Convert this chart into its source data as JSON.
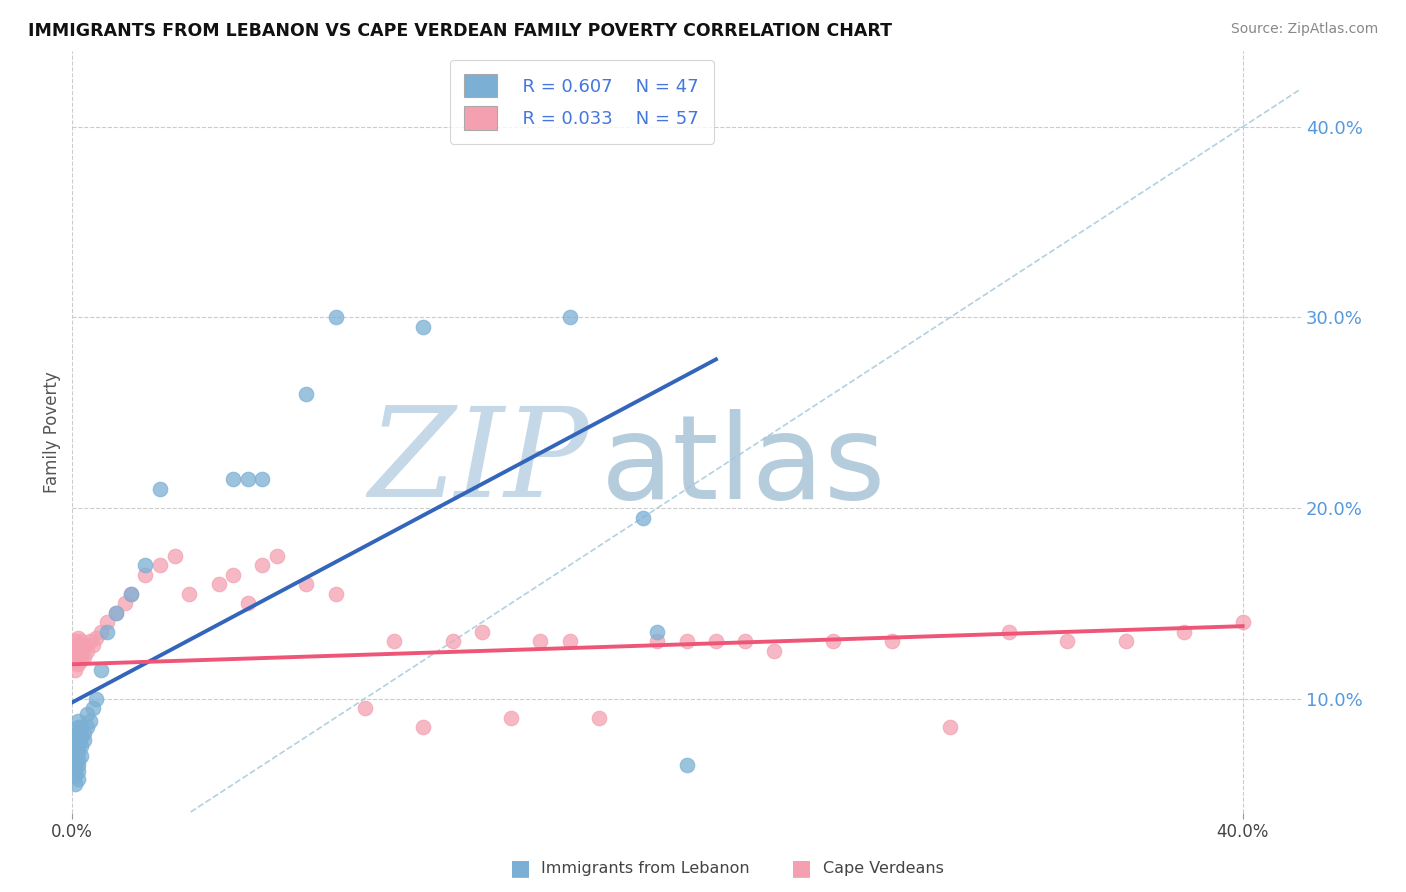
{
  "title": "IMMIGRANTS FROM LEBANON VS CAPE VERDEAN FAMILY POVERTY CORRELATION CHART",
  "source": "Source: ZipAtlas.com",
  "ylabel": "Family Poverty",
  "xlim": [
    0.0,
    0.42
  ],
  "ylim": [
    0.04,
    0.44
  ],
  "yticks": [
    0.1,
    0.2,
    0.3,
    0.4
  ],
  "ytick_labels": [
    "10.0%",
    "20.0%",
    "30.0%",
    "40.0%"
  ],
  "blue_color": "#7BAFD4",
  "pink_color": "#F4A0B0",
  "trend_blue": "#3366BB",
  "trend_pink": "#EE5577",
  "diag_color": "#AACCDD",
  "grid_color": "#CCCCCC",
  "watermark_zip_color": "#C5D8E8",
  "watermark_atlas_color": "#A8C4D8",
  "blue_x": [
    0.001,
    0.001,
    0.001,
    0.001,
    0.001,
    0.001,
    0.001,
    0.001,
    0.001,
    0.001,
    0.002,
    0.002,
    0.002,
    0.002,
    0.002,
    0.002,
    0.002,
    0.002,
    0.002,
    0.002,
    0.003,
    0.003,
    0.003,
    0.003,
    0.004,
    0.004,
    0.005,
    0.005,
    0.006,
    0.007,
    0.008,
    0.01,
    0.012,
    0.015,
    0.02,
    0.025,
    0.03,
    0.055,
    0.06,
    0.065,
    0.08,
    0.09,
    0.12,
    0.17,
    0.195,
    0.2,
    0.21
  ],
  "blue_y": [
    0.055,
    0.06,
    0.062,
    0.065,
    0.068,
    0.07,
    0.072,
    0.075,
    0.078,
    0.08,
    0.058,
    0.062,
    0.065,
    0.068,
    0.072,
    0.075,
    0.08,
    0.082,
    0.085,
    0.088,
    0.07,
    0.075,
    0.08,
    0.085,
    0.078,
    0.082,
    0.085,
    0.092,
    0.088,
    0.095,
    0.1,
    0.115,
    0.135,
    0.145,
    0.155,
    0.17,
    0.21,
    0.215,
    0.215,
    0.215,
    0.26,
    0.3,
    0.295,
    0.3,
    0.195,
    0.135,
    0.065
  ],
  "pink_x": [
    0.001,
    0.001,
    0.001,
    0.001,
    0.001,
    0.002,
    0.002,
    0.002,
    0.002,
    0.002,
    0.003,
    0.003,
    0.003,
    0.004,
    0.004,
    0.005,
    0.006,
    0.007,
    0.008,
    0.01,
    0.012,
    0.015,
    0.018,
    0.02,
    0.025,
    0.03,
    0.035,
    0.04,
    0.05,
    0.055,
    0.06,
    0.065,
    0.07,
    0.08,
    0.09,
    0.1,
    0.11,
    0.12,
    0.13,
    0.14,
    0.15,
    0.16,
    0.17,
    0.18,
    0.2,
    0.21,
    0.22,
    0.23,
    0.24,
    0.26,
    0.28,
    0.3,
    0.32,
    0.34,
    0.36,
    0.38,
    0.4
  ],
  "pink_y": [
    0.115,
    0.12,
    0.122,
    0.125,
    0.13,
    0.118,
    0.122,
    0.125,
    0.128,
    0.132,
    0.12,
    0.125,
    0.13,
    0.122,
    0.128,
    0.125,
    0.13,
    0.128,
    0.132,
    0.135,
    0.14,
    0.145,
    0.15,
    0.155,
    0.165,
    0.17,
    0.175,
    0.155,
    0.16,
    0.165,
    0.15,
    0.17,
    0.175,
    0.16,
    0.155,
    0.095,
    0.13,
    0.085,
    0.13,
    0.135,
    0.09,
    0.13,
    0.13,
    0.09,
    0.13,
    0.13,
    0.13,
    0.13,
    0.125,
    0.13,
    0.13,
    0.085,
    0.135,
    0.13,
    0.13,
    0.135,
    0.14
  ],
  "blue_trend_x": [
    0.0,
    0.22
  ],
  "blue_trend_y": [
    0.098,
    0.278
  ],
  "pink_trend_x": [
    0.0,
    0.4
  ],
  "pink_trend_y": [
    0.118,
    0.138
  ]
}
